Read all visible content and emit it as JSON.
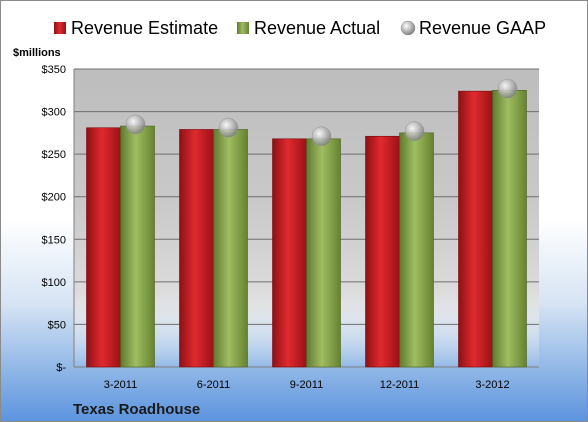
{
  "chart_data": {
    "type": "bar",
    "ylabel": "$millions",
    "ylim": [
      0,
      350
    ],
    "yticks": [
      0,
      50,
      100,
      150,
      200,
      250,
      300,
      350
    ],
    "ytick_labels": [
      "$-",
      "$50",
      "$100",
      "$150",
      "$200",
      "$250",
      "$300",
      "$350"
    ],
    "categories": [
      "3-2011",
      "6-2011",
      "9-2011",
      "12-2011",
      "3-2012"
    ],
    "series": [
      {
        "name": "Revenue Estimate",
        "kind": "bar",
        "color": "#c0191e",
        "values": [
          281,
          279,
          268,
          271,
          324
        ]
      },
      {
        "name": "Revenue Actual",
        "kind": "bar",
        "color": "#86a349",
        "values": [
          283,
          279,
          268,
          275,
          325
        ]
      },
      {
        "name": "Revenue GAAP",
        "kind": "marker",
        "color": "#b8b8b8",
        "values": [
          285,
          281,
          271,
          277,
          327
        ]
      }
    ],
    "grid": true,
    "legend": "top",
    "company": "Texas Roadhouse"
  }
}
